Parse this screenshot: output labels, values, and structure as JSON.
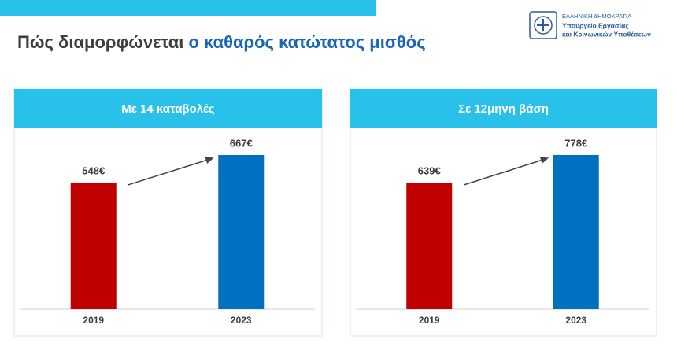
{
  "header": {
    "title_part1": "Πώς διαμορφώνεται",
    "title_part2": "ο καθαρός κατώτατος μισθός",
    "logo": [
      "ΕΛΛΗΝΙΚΗ ΔΗΜΟΚΡΑΤΙΑ",
      "Υπουργείο Εργασίας",
      "και Κοινωνικών Υποθέσεων"
    ]
  },
  "chart_data": [
    {
      "type": "bar",
      "title": "Με 14 καταβολές",
      "categories": [
        "2019",
        "2023"
      ],
      "values": [
        548,
        667
      ],
      "value_labels": [
        "548€",
        "667€"
      ],
      "colors": [
        "#c00000",
        "#0070c0"
      ]
    },
    {
      "type": "bar",
      "title": "Σε 12μηνη βάση",
      "categories": [
        "2019",
        "2023"
      ],
      "values": [
        639,
        778
      ],
      "value_labels": [
        "639€",
        "778€"
      ],
      "colors": [
        "#c00000",
        "#0070c0"
      ]
    }
  ]
}
